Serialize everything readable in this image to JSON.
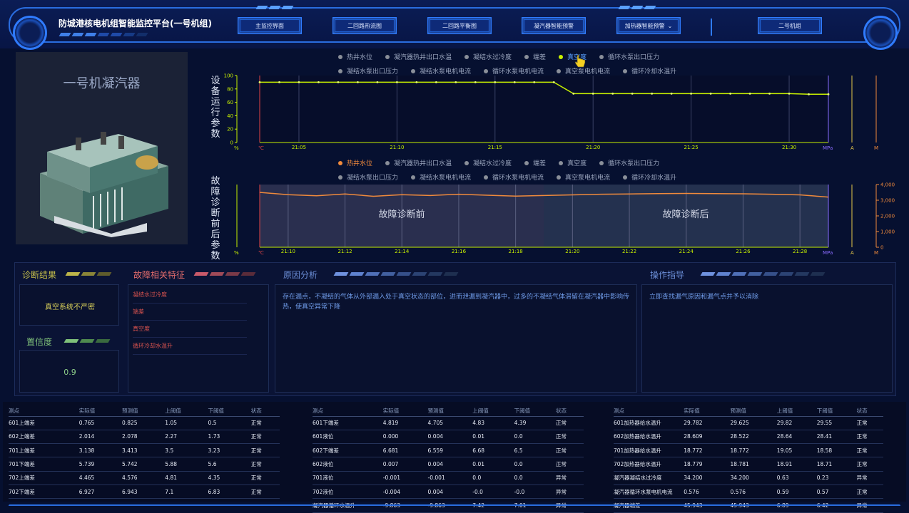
{
  "header": {
    "title": "防城港核电机组智能监控平台(一号机组)",
    "nav": [
      "主监控界面",
      "二回路热流图",
      "二回路平衡图",
      "凝汽器智能预警",
      "加热器智能预警",
      "二号机组"
    ]
  },
  "colors": {
    "accent": "#2f7bff",
    "lime": "#c7f000",
    "orange": "#f08a3c",
    "purple": "#8a6bff"
  },
  "condenser": {
    "title": "一号机凝汽器"
  },
  "chart1": {
    "vlabel": "设备运行参数",
    "legend": [
      {
        "label": "热井水位",
        "active": false
      },
      {
        "label": "凝汽器热井出口水温",
        "active": false
      },
      {
        "label": "凝结水过冷度",
        "active": false
      },
      {
        "label": "端差",
        "active": false
      },
      {
        "label": "真空度",
        "active": true
      },
      {
        "label": "循环水泵出口压力",
        "active": false
      },
      {
        "label": "凝结水泵出口压力",
        "active": false
      },
      {
        "label": "凝结水泵电机电流",
        "active": false
      },
      {
        "label": "循环水泵电机电流",
        "active": false
      },
      {
        "label": "真空泵电机电流",
        "active": false
      },
      {
        "label": "循环冷却水温升",
        "active": false
      }
    ],
    "y_ticks": [
      "100",
      "80",
      "60",
      "40",
      "20",
      "0"
    ],
    "y_unit": "%",
    "x_unit_left": "℃",
    "x_ticks": [
      "21:05",
      "21:10",
      "21:15",
      "21:20",
      "21:25",
      "21:30"
    ],
    "x_unit_right": "MPa",
    "right_labels": [
      "A",
      "M"
    ]
  },
  "chart2": {
    "vlabel": "故障诊断前后参数",
    "legend": [
      {
        "label": "热井水位",
        "active": true
      },
      {
        "label": "凝汽器热井出口水温",
        "active": false
      },
      {
        "label": "凝结水过冷度",
        "active": false
      },
      {
        "label": "端差",
        "active": false
      },
      {
        "label": "真空度",
        "active": false
      },
      {
        "label": "循环水泵出口压力",
        "active": false
      },
      {
        "label": "凝结水泵出口压力",
        "active": false
      },
      {
        "label": "凝结水泵电机电流",
        "active": false
      },
      {
        "label": "循环水泵电机电流",
        "active": false
      },
      {
        "label": "真空泵电机电流",
        "active": false
      },
      {
        "label": "循环冷却水温升",
        "active": false
      }
    ],
    "region_before": "故障诊断前",
    "region_after": "故障诊断后",
    "y_unit": "%",
    "x_unit_left": "℃",
    "x_ticks": [
      "21:10",
      "21:12",
      "21:14",
      "21:16",
      "21:18",
      "21:20",
      "21:22",
      "21:24",
      "21:26",
      "21:28"
    ],
    "x_unit_right": "MPa",
    "right_labels": [
      "A",
      "M"
    ],
    "right_ticks": [
      "4,000",
      "3,000",
      "2,000",
      "1,000",
      "0"
    ]
  },
  "chart_data": [
    {
      "type": "line",
      "series": [
        {
          "name": "真空度",
          "x": [
            "21:03",
            "21:04",
            "21:05",
            "21:06",
            "21:07",
            "21:08",
            "21:09",
            "21:10",
            "21:11",
            "21:12",
            "21:13",
            "21:14",
            "21:15",
            "21:16",
            "21:17",
            "21:18",
            "21:19",
            "21:20",
            "21:21",
            "21:22",
            "21:23",
            "21:24",
            "21:25",
            "21:26",
            "21:27",
            "21:28",
            "21:29",
            "21:30",
            "21:31",
            "21:32"
          ],
          "values": [
            90,
            90,
            90,
            90,
            90,
            90,
            90,
            90,
            90,
            90,
            90,
            90,
            90,
            90,
            90,
            90,
            73,
            73,
            73,
            73,
            73,
            73,
            73,
            73,
            73,
            73,
            73,
            73,
            72,
            72
          ]
        }
      ],
      "ylim": [
        0,
        100
      ]
    },
    {
      "type": "line",
      "series": [
        {
          "name": "热井水位",
          "x": [
            "21:09",
            "21:10",
            "21:11",
            "21:12",
            "21:13",
            "21:14",
            "21:15",
            "21:16",
            "21:17",
            "21:18",
            "21:19",
            "21:20",
            "21:21",
            "21:22",
            "21:23",
            "21:24",
            "21:25",
            "21:26",
            "21:27",
            "21:28",
            "21:29"
          ],
          "values": [
            3500,
            3350,
            3280,
            3400,
            3250,
            3350,
            3300,
            3380,
            3320,
            3260,
            3300,
            3340,
            3380,
            3400,
            3420,
            3430,
            3420,
            3410,
            3380,
            3340,
            3200
          ]
        }
      ],
      "ylim": [
        0,
        4000
      ]
    }
  ],
  "diagnosis": {
    "title": "诊断结果",
    "result": "真空系统不严密",
    "confidence_title": "置信度",
    "confidence": "0.9"
  },
  "features": {
    "title": "故障相关特征",
    "items": [
      "凝结水过冷度",
      "端差",
      "真空度",
      "循环冷却水温升"
    ]
  },
  "cause": {
    "title": "原因分析",
    "text": "存在漏点，不凝结的气体从外部漏入处于真空状态的部位，进而泄漏到凝汽器中，过多的不凝结气体滞留在凝汽器中影响传热，使真空异常下降"
  },
  "guide": {
    "title": "操作指导",
    "text": "立即查找漏气原因和漏气点并予以消除"
  },
  "tables": [
    {
      "headers": [
        "测点",
        "实际值",
        "预测值",
        "上阈值",
        "下阈值",
        "状态"
      ],
      "rows": [
        [
          "601上端差",
          "0.765",
          "0.825",
          "1.05",
          "0.5",
          "正常"
        ],
        [
          "602上端差",
          "2.014",
          "2.078",
          "2.27",
          "1.73",
          "正常"
        ],
        [
          "701上端差",
          "3.138",
          "3.413",
          "3.5",
          "3.23",
          "正常"
        ],
        [
          "701下端差",
          "5.739",
          "5.742",
          "5.88",
          "5.6",
          "正常"
        ],
        [
          "702上端差",
          "4.465",
          "4.576",
          "4.81",
          "4.35",
          "正常"
        ],
        [
          "702下端差",
          "6.927",
          "6.943",
          "7.1",
          "6.83",
          "正常"
        ]
      ]
    },
    {
      "headers": [
        "测点",
        "实际值",
        "预测值",
        "上阈值",
        "下阈值",
        "状态"
      ],
      "rows": [
        [
          "601下端差",
          "4.819",
          "4.705",
          "4.83",
          "4.39",
          "正常"
        ],
        [
          "601液位",
          "0.000",
          "0.004",
          "0.01",
          "0.0",
          "正常"
        ],
        [
          "602下端差",
          "6.681",
          "6.559",
          "6.68",
          "6.5",
          "正常"
        ],
        [
          "602液位",
          "0.007",
          "0.004",
          "0.01",
          "0.0",
          "正常"
        ],
        [
          "701液位",
          "-0.001",
          "-0.001",
          "0.0",
          "0.0",
          "异常"
        ],
        [
          "702液位",
          "-0.004",
          "0.004",
          "-0.0",
          "-0.0",
          "异常"
        ],
        [
          "凝汽器循环水温升",
          "-9.863",
          "-9.863",
          "7.42",
          "7.01",
          "异常"
        ]
      ]
    },
    {
      "headers": [
        "测点",
        "实际值",
        "预测值",
        "上阈值",
        "下阈值",
        "状态"
      ],
      "rows": [
        [
          "601加热器给水温升",
          "29.782",
          "29.625",
          "29.82",
          "29.55",
          "正常"
        ],
        [
          "602加热器给水温升",
          "28.609",
          "28.522",
          "28.64",
          "28.41",
          "正常"
        ],
        [
          "701加热器给水温升",
          "18.772",
          "18.772",
          "19.05",
          "18.58",
          "正常"
        ],
        [
          "702加热器给水温升",
          "18.779",
          "18.781",
          "18.91",
          "18.71",
          "正常"
        ],
        [
          "凝汽器凝结水过冷度",
          "34.200",
          "34.200",
          "0.63",
          "0.23",
          "异常"
        ],
        [
          "凝汽器循环水泵电机电流",
          "0.576",
          "0.576",
          "0.59",
          "0.57",
          "正常"
        ],
        [
          "凝汽器端差",
          "45.943",
          "45.943",
          "6.89",
          "6.42",
          "异常"
        ]
      ]
    }
  ]
}
